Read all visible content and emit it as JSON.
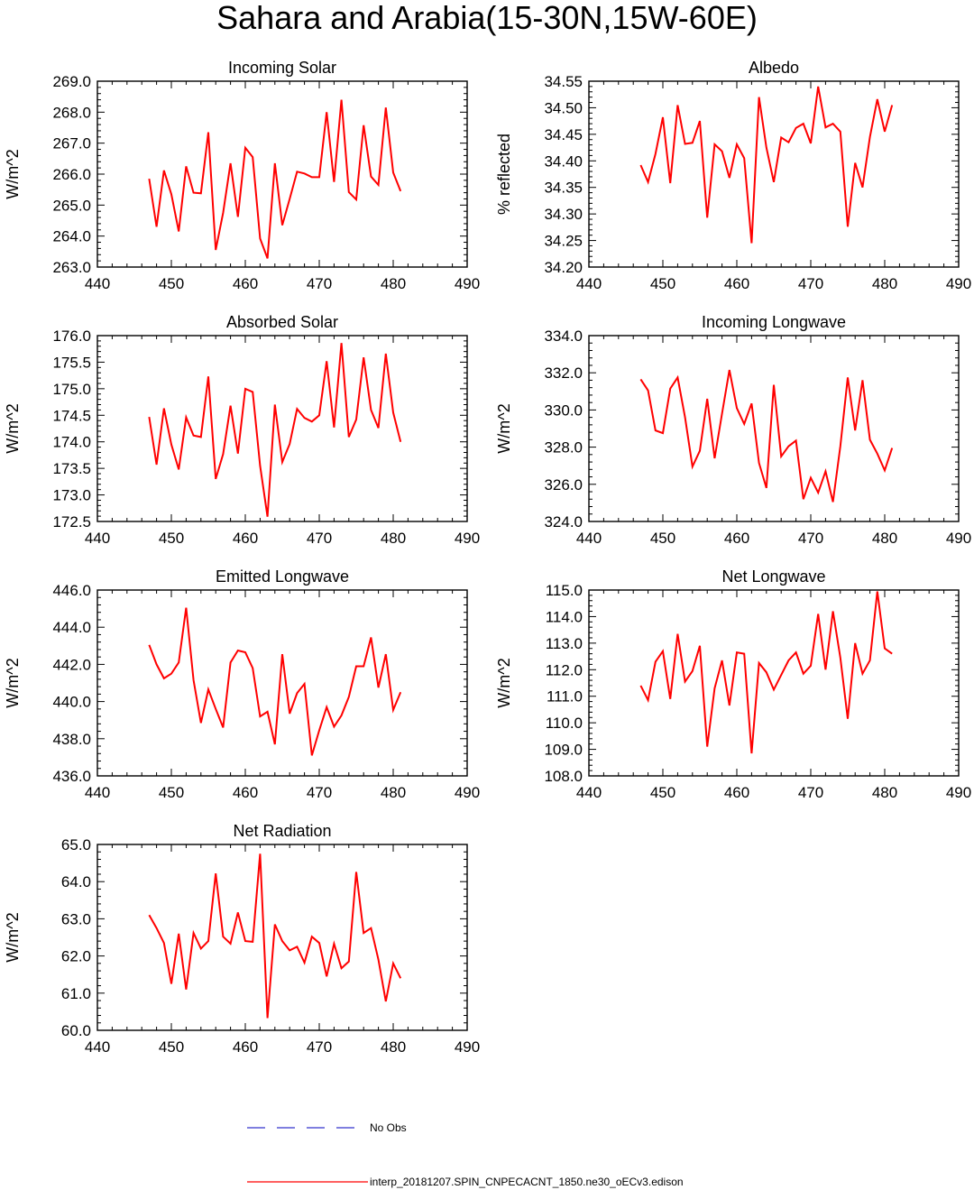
{
  "title": "Sahara and Arabia(15-30N,15W-60E)",
  "colors": {
    "model": "#ff0000",
    "obs": "#3333cc",
    "axis": "#000000"
  },
  "legend": {
    "obs_label": "No Obs",
    "model_label": "interp_20181207.SPIN_CNPECACNT_1850.ne30_oECv3.edison"
  },
  "chart_data": [
    {
      "type": "line",
      "title": "Incoming Solar",
      "xlabel": "",
      "ylabel": "W/m^2",
      "xlim": [
        440,
        490
      ],
      "xticks": [
        440,
        450,
        460,
        470,
        480,
        490
      ],
      "ylim": [
        263.0,
        269.0
      ],
      "yticks": [
        263.0,
        264.0,
        265.0,
        266.0,
        267.0,
        268.0,
        269.0
      ],
      "ydecimals": 1,
      "x": [
        447,
        448,
        449,
        450,
        451,
        452,
        453,
        454,
        455,
        456,
        457,
        458,
        459,
        460,
        461,
        462,
        463,
        464,
        465,
        466,
        467,
        468,
        469,
        470,
        471,
        472,
        473,
        474,
        475,
        476,
        477,
        478,
        479,
        480,
        481
      ],
      "series": [
        {
          "name": "interp_20181207.SPIN_CNPECACNT_1850.ne30_oECv3.edison",
          "values": [
            265.85,
            264.3,
            266.12,
            265.35,
            264.15,
            266.25,
            265.4,
            265.38,
            267.35,
            263.55,
            264.75,
            266.35,
            264.62,
            266.85,
            266.55,
            263.92,
            263.28,
            266.35,
            264.35,
            265.2,
            266.08,
            266.02,
            265.9,
            265.9,
            268.0,
            265.75,
            268.4,
            265.42,
            265.18,
            267.58,
            265.92,
            265.65,
            268.15,
            266.05,
            265.45
          ]
        }
      ]
    },
    {
      "type": "line",
      "title": "Albedo",
      "xlabel": "",
      "ylabel": "% reflected",
      "xlim": [
        440,
        490
      ],
      "xticks": [
        440,
        450,
        460,
        470,
        480,
        490
      ],
      "ylim": [
        34.2,
        34.55
      ],
      "yticks": [
        34.2,
        34.25,
        34.3,
        34.35,
        34.4,
        34.45,
        34.5,
        34.55
      ],
      "ydecimals": 2,
      "x": [
        447,
        448,
        449,
        450,
        451,
        452,
        453,
        454,
        455,
        456,
        457,
        458,
        459,
        460,
        461,
        462,
        463,
        464,
        465,
        466,
        467,
        468,
        469,
        470,
        471,
        472,
        473,
        474,
        475,
        476,
        477,
        478,
        479,
        480,
        481
      ],
      "series": [
        {
          "name": "interp_20181207.SPIN_CNPECACNT_1850.ne30_oECv3.edison",
          "values": [
            34.392,
            34.36,
            34.413,
            34.482,
            34.358,
            34.505,
            34.432,
            34.434,
            34.475,
            34.293,
            34.431,
            34.418,
            34.368,
            34.431,
            34.405,
            34.245,
            34.52,
            34.425,
            34.36,
            34.444,
            34.435,
            34.462,
            34.47,
            34.433,
            34.54,
            34.463,
            34.47,
            34.455,
            34.276,
            34.396,
            34.35,
            34.445,
            34.516,
            34.455,
            34.505
          ]
        }
      ]
    },
    {
      "type": "line",
      "title": "Absorbed Solar",
      "xlabel": "",
      "ylabel": "W/m^2",
      "xlim": [
        440,
        490
      ],
      "xticks": [
        440,
        450,
        460,
        470,
        480,
        490
      ],
      "ylim": [
        172.5,
        176.0
      ],
      "yticks": [
        172.5,
        173.0,
        173.5,
        174.0,
        174.5,
        175.0,
        175.5,
        176.0
      ],
      "ydecimals": 1,
      "x": [
        447,
        448,
        449,
        450,
        451,
        452,
        453,
        454,
        455,
        456,
        457,
        458,
        459,
        460,
        461,
        462,
        463,
        464,
        465,
        466,
        467,
        468,
        469,
        470,
        471,
        472,
        473,
        474,
        475,
        476,
        477,
        478,
        479,
        480,
        481
      ],
      "series": [
        {
          "name": "interp_20181207.SPIN_CNPECACNT_1850.ne30_oECv3.edison",
          "values": [
            174.47,
            173.57,
            174.63,
            173.95,
            173.48,
            174.46,
            174.12,
            174.09,
            175.23,
            173.3,
            173.77,
            174.68,
            173.78,
            175.0,
            174.94,
            173.55,
            172.59,
            174.7,
            173.62,
            173.96,
            174.62,
            174.45,
            174.38,
            174.5,
            175.52,
            174.27,
            175.86,
            174.09,
            174.42,
            175.59,
            174.6,
            174.26,
            175.66,
            174.55,
            174.0
          ]
        }
      ]
    },
    {
      "type": "line",
      "title": "Incoming Longwave",
      "xlabel": "",
      "ylabel": "W/m^2",
      "xlim": [
        440,
        490
      ],
      "xticks": [
        440,
        450,
        460,
        470,
        480,
        490
      ],
      "ylim": [
        324.0,
        334.0
      ],
      "yticks": [
        324.0,
        326.0,
        328.0,
        330.0,
        332.0,
        334.0
      ],
      "ydecimals": 1,
      "x": [
        447,
        448,
        449,
        450,
        451,
        452,
        453,
        454,
        455,
        456,
        457,
        458,
        459,
        460,
        461,
        462,
        463,
        464,
        465,
        466,
        467,
        468,
        469,
        470,
        471,
        472,
        473,
        474,
        475,
        476,
        477,
        478,
        479,
        480,
        481
      ],
      "series": [
        {
          "name": "interp_20181207.SPIN_CNPECACNT_1850.ne30_oECv3.edison",
          "values": [
            331.65,
            331.05,
            328.9,
            328.75,
            331.15,
            331.75,
            329.6,
            326.95,
            327.8,
            330.6,
            327.4,
            329.8,
            332.15,
            330.1,
            329.25,
            330.35,
            327.15,
            325.8,
            331.35,
            327.5,
            328.05,
            328.35,
            325.2,
            326.35,
            325.55,
            326.7,
            325.05,
            328.05,
            331.75,
            328.9,
            331.6,
            328.4,
            327.65,
            326.75,
            327.95
          ]
        }
      ]
    },
    {
      "type": "line",
      "title": "Emitted Longwave",
      "xlabel": "",
      "ylabel": "W/m^2",
      "xlim": [
        440,
        490
      ],
      "xticks": [
        440,
        450,
        460,
        470,
        480,
        490
      ],
      "ylim": [
        436.0,
        446.0
      ],
      "yticks": [
        436.0,
        438.0,
        440.0,
        442.0,
        444.0,
        446.0
      ],
      "ydecimals": 1,
      "x": [
        447,
        448,
        449,
        450,
        451,
        452,
        453,
        454,
        455,
        456,
        457,
        458,
        459,
        460,
        461,
        462,
        463,
        464,
        465,
        466,
        467,
        468,
        469,
        470,
        471,
        472,
        473,
        474,
        475,
        476,
        477,
        478,
        479,
        480,
        481
      ],
      "series": [
        {
          "name": "interp_20181207.SPIN_CNPECACNT_1850.ne30_oECv3.edison",
          "values": [
            443.05,
            442.0,
            441.25,
            441.5,
            442.1,
            445.05,
            441.15,
            438.85,
            440.65,
            439.6,
            438.6,
            442.1,
            442.75,
            442.65,
            441.8,
            439.2,
            439.45,
            437.7,
            442.55,
            439.35,
            440.45,
            440.95,
            437.1,
            438.45,
            439.7,
            438.65,
            439.25,
            440.25,
            441.9,
            441.9,
            443.45,
            440.75,
            442.55,
            439.55,
            440.5
          ]
        }
      ]
    },
    {
      "type": "line",
      "title": "Net Longwave",
      "xlabel": "",
      "ylabel": "W/m^2",
      "xlim": [
        440,
        490
      ],
      "xticks": [
        440,
        450,
        460,
        470,
        480,
        490
      ],
      "ylim": [
        108.0,
        115.0
      ],
      "yticks": [
        108.0,
        109.0,
        110.0,
        111.0,
        112.0,
        113.0,
        114.0,
        115.0
      ],
      "ydecimals": 1,
      "x": [
        447,
        448,
        449,
        450,
        451,
        452,
        453,
        454,
        455,
        456,
        457,
        458,
        459,
        460,
        461,
        462,
        463,
        464,
        465,
        466,
        467,
        468,
        469,
        470,
        471,
        472,
        473,
        474,
        475,
        476,
        477,
        478,
        479,
        480,
        481
      ],
      "series": [
        {
          "name": "interp_20181207.SPIN_CNPECACNT_1850.ne30_oECv3.edison",
          "values": [
            111.4,
            110.85,
            112.3,
            112.7,
            110.9,
            113.35,
            111.55,
            111.95,
            112.9,
            109.1,
            111.3,
            112.35,
            110.65,
            112.65,
            112.6,
            108.85,
            112.25,
            111.9,
            111.25,
            111.8,
            112.35,
            112.65,
            111.85,
            112.15,
            114.1,
            112.0,
            114.2,
            112.45,
            110.15,
            113.0,
            111.85,
            112.35,
            114.95,
            112.8,
            112.6
          ]
        }
      ]
    },
    {
      "type": "line",
      "title": "Net Radiation",
      "xlabel": "",
      "ylabel": "W/m^2",
      "xlim": [
        440,
        490
      ],
      "xticks": [
        440,
        450,
        460,
        470,
        480,
        490
      ],
      "ylim": [
        60.0,
        65.0
      ],
      "yticks": [
        60.0,
        61.0,
        62.0,
        63.0,
        64.0,
        65.0
      ],
      "ydecimals": 1,
      "x": [
        447,
        448,
        449,
        450,
        451,
        452,
        453,
        454,
        455,
        456,
        457,
        458,
        459,
        460,
        461,
        462,
        463,
        464,
        465,
        466,
        467,
        468,
        469,
        470,
        471,
        472,
        473,
        474,
        475,
        476,
        477,
        478,
        479,
        480,
        481
      ],
      "series": [
        {
          "name": "interp_20181207.SPIN_CNPECACNT_1850.ne30_oECv3.edison",
          "values": [
            63.1,
            62.75,
            62.35,
            61.25,
            62.6,
            61.1,
            62.62,
            62.2,
            62.4,
            64.22,
            62.52,
            62.33,
            63.17,
            62.4,
            62.38,
            64.75,
            60.33,
            62.85,
            62.4,
            62.15,
            62.25,
            61.82,
            62.52,
            62.35,
            61.45,
            62.33,
            61.67,
            61.85,
            64.26,
            62.62,
            62.75,
            61.9,
            60.78,
            61.8,
            61.4
          ]
        }
      ]
    }
  ]
}
